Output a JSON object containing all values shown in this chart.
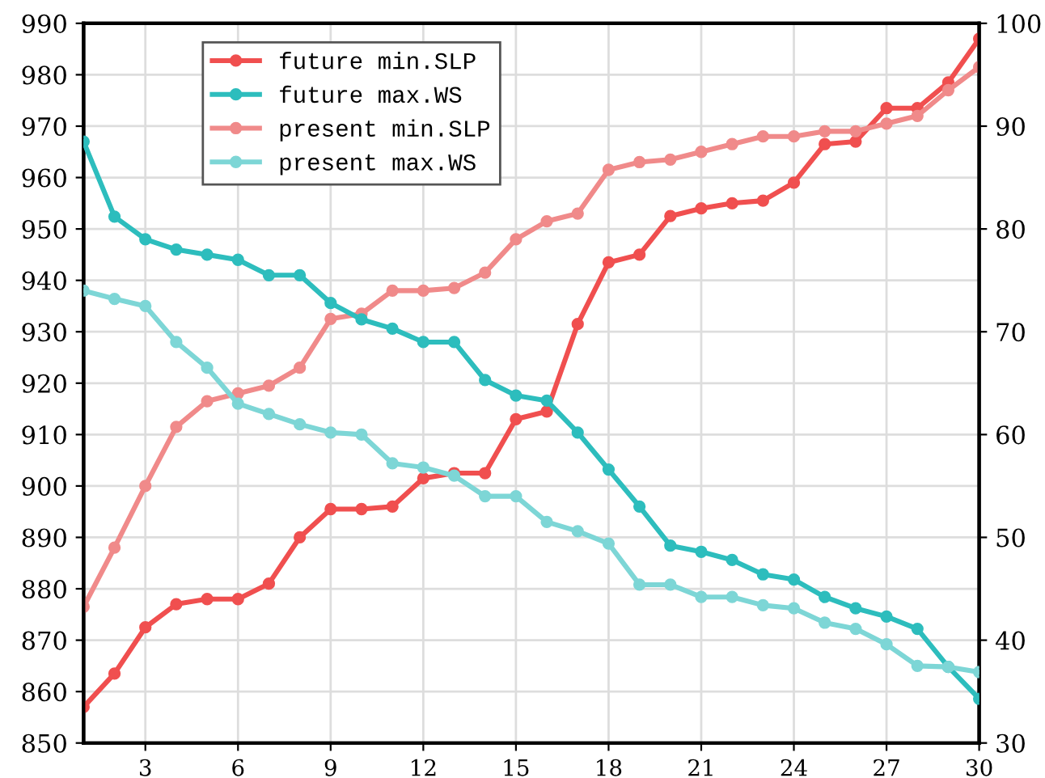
{
  "chart_data": {
    "type": "line",
    "x": [
      1,
      2,
      3,
      4,
      5,
      6,
      7,
      8,
      9,
      10,
      11,
      12,
      13,
      14,
      15,
      16,
      17,
      18,
      19,
      20,
      21,
      22,
      23,
      24,
      25,
      26,
      27,
      28,
      29,
      30
    ],
    "xlim": [
      1,
      30
    ],
    "xticks": [
      3,
      6,
      9,
      12,
      15,
      18,
      21,
      24,
      27,
      30
    ],
    "ylim": [
      850,
      990
    ],
    "yticks": [
      850,
      860,
      870,
      880,
      890,
      900,
      910,
      920,
      930,
      940,
      950,
      960,
      970,
      980,
      990
    ],
    "y2lim": [
      30,
      100
    ],
    "y2ticks": [
      30,
      40,
      50,
      60,
      70,
      80,
      90,
      100
    ],
    "grid": true,
    "legend": "top left",
    "marker": "circle",
    "series": [
      {
        "name": "future min.SLP",
        "color": "#f04f4f",
        "values": [
          857,
          863.5,
          872.5,
          877,
          878,
          878,
          881,
          890,
          895.5,
          895.5,
          896,
          901.5,
          902.5,
          902.5,
          913,
          914.5,
          931.5,
          943.5,
          945,
          952.5,
          954,
          955,
          955.5,
          959,
          966.5,
          967,
          973.5,
          973.5,
          978.5,
          987
        ]
      },
      {
        "name": "future max.WS",
        "color": "#2dbdbd",
        "axis": "y2",
        "values": [
          88.5,
          81.2,
          79,
          78,
          77.5,
          77,
          75.5,
          75.5,
          72.8,
          71.2,
          70.3,
          69,
          69,
          65.3,
          63.8,
          63.3,
          60.2,
          56.6,
          53,
          49.2,
          48.6,
          47.8,
          46.4,
          45.9,
          44.2,
          43.1,
          42.3,
          41.1,
          37.4,
          34.3
        ]
      },
      {
        "name": "present min.SLP",
        "color": "#f08a8a",
        "values": [
          876.5,
          888,
          900,
          911.5,
          916.5,
          918,
          919.5,
          923,
          932.5,
          933.5,
          938,
          938,
          938.5,
          941.5,
          948,
          951.5,
          953,
          961.5,
          963,
          963.5,
          965,
          966.5,
          968,
          968,
          969,
          969,
          970.5,
          972,
          977,
          981.5
        ]
      },
      {
        "name": "present max.WS",
        "color": "#7dd6d6",
        "axis": "y2",
        "values": [
          74,
          73.2,
          72.5,
          69,
          66.5,
          63,
          62,
          61,
          60.2,
          60,
          57.2,
          56.8,
          56,
          54,
          54,
          51.5,
          50.6,
          49.4,
          45.4,
          45.4,
          44.2,
          44.2,
          43.4,
          43.1,
          41.7,
          41.1,
          39.6,
          37.5,
          37.4,
          36.9
        ]
      }
    ]
  }
}
